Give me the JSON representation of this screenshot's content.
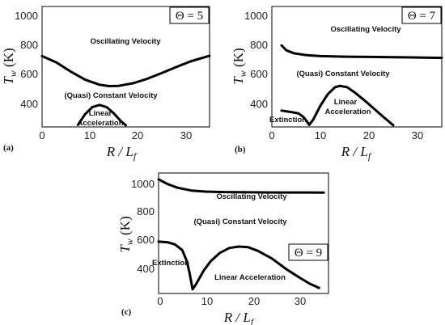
{
  "chart_data": [
    {
      "type": "line",
      "panel_label": "(a)",
      "theta_label": "Θ = 5",
      "xlabel": "R / L_f",
      "ylabel": "T_w (K)",
      "xlim": [
        0,
        35
      ],
      "ylim": [
        250,
        1100
      ],
      "xticks": [
        0,
        10,
        20,
        30
      ],
      "yticks": [
        400,
        600,
        800,
        1000
      ],
      "region_labels": [
        "Oscillating Velocity",
        "(Quasi) Constant Velocity",
        "Linear",
        "Acceleration"
      ],
      "series": [
        {
          "x": [
            0,
            3,
            6,
            9,
            12,
            14,
            16,
            19,
            22,
            25,
            28,
            31,
            35
          ],
          "y": [
            750,
            705,
            640,
            583,
            548,
            538,
            540,
            558,
            590,
            630,
            672,
            712,
            752
          ]
        },
        {
          "x": [
            7.5,
            9,
            10.5,
            12,
            13.5,
            15,
            16.5,
            17.5
          ],
          "y": [
            265,
            340,
            390,
            405,
            390,
            345,
            290,
            262
          ]
        }
      ]
    },
    {
      "type": "line",
      "panel_label": "(b)",
      "theta_label": "Θ = 7",
      "xlabel": "R / L_f",
      "ylabel": "T_w (K)",
      "xlim": [
        0,
        35
      ],
      "ylim": [
        250,
        1100
      ],
      "xticks": [
        0,
        10,
        20,
        30
      ],
      "yticks": [
        400,
        600,
        800,
        1000
      ],
      "region_labels": [
        "Oscillating Velocity",
        "(Quasi) Constant Velocity",
        "Linear",
        "Acceleration",
        "Extinction"
      ],
      "series": [
        {
          "x": [
            2,
            3,
            4.5,
            7,
            10,
            15,
            20,
            25,
            30,
            35
          ],
          "y": [
            825,
            790,
            770,
            757,
            750,
            746,
            744,
            742,
            740,
            737
          ]
        },
        {
          "x": [
            2,
            4,
            5.5,
            6.5,
            7.2,
            7.7,
            8.5,
            10,
            11.5,
            13,
            14,
            15.5,
            17,
            19,
            21,
            23,
            25
          ],
          "y": [
            365,
            355,
            345,
            320,
            290,
            265,
            300,
            400,
            480,
            530,
            540,
            530,
            495,
            440,
            380,
            320,
            262
          ]
        }
      ]
    },
    {
      "type": "line",
      "panel_label": "(c)",
      "theta_label": "Θ = 9",
      "xlabel": "R / L_f",
      "ylabel": "T_w (K)",
      "xlim": [
        0,
        36
      ],
      "ylim": [
        230,
        1090
      ],
      "xticks": [
        0,
        10,
        20,
        30
      ],
      "yticks": [
        400,
        600,
        800,
        1000
      ],
      "region_labels": [
        "Oscillating Velocity",
        "(Quasi) Constant Velocity",
        "Extinction",
        "Linear Acceleration"
      ],
      "series": [
        {
          "x": [
            0,
            2,
            4,
            7,
            10,
            14,
            20,
            25,
            30,
            35
          ],
          "y": [
            1045,
            1010,
            985,
            965,
            957,
            954,
            952,
            951,
            951,
            950
          ]
        },
        {
          "x": [
            0,
            2,
            3.5,
            5,
            6,
            6.6,
            7.2,
            8,
            9.5,
            11,
            13,
            15,
            17,
            19,
            21,
            24,
            27,
            30,
            32,
            34
          ],
          "y": [
            600,
            595,
            580,
            540,
            460,
            370,
            260,
            300,
            390,
            460,
            520,
            555,
            565,
            560,
            535,
            480,
            405,
            340,
            300,
            270
          ]
        }
      ]
    }
  ]
}
